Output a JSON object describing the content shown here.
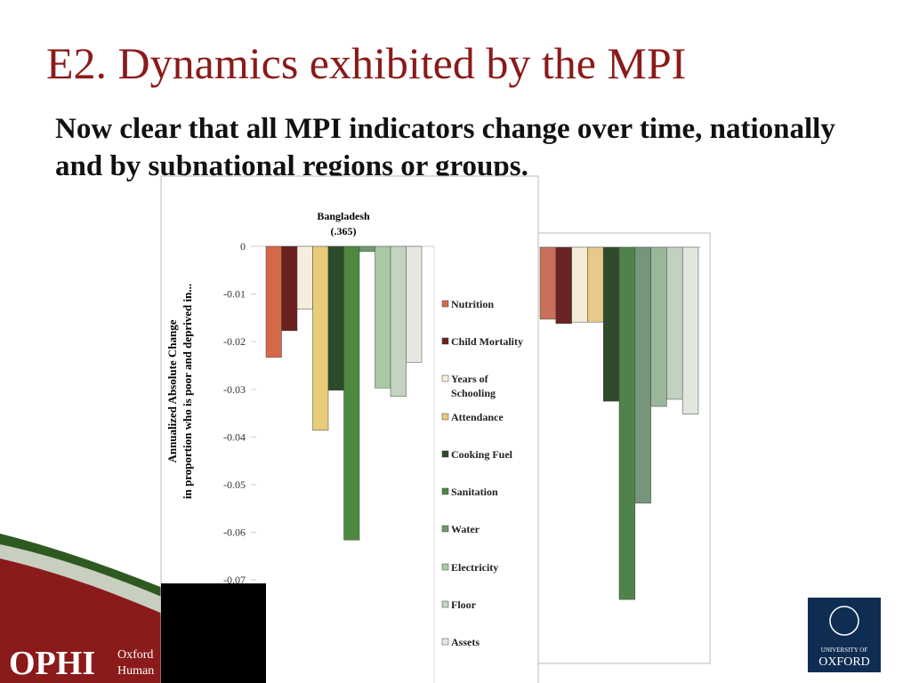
{
  "slide_title": "E2. Dynamics exhibited by the MPI",
  "body": "Now clear that all MPI indicators change over time, nationally and by subnational regions or groups.",
  "footer": {
    "brand": "OPHI",
    "line1": "Oxford",
    "line2": "Human",
    "logo_line1": "UNIVERSITY OF",
    "logo_line2": "OXFORD"
  },
  "chart_data": [
    {
      "type": "bar",
      "values": [
        -0.0151,
        -0.016,
        -0.0157,
        -0.0157,
        -0.0323,
        -0.0739,
        -0.0537,
        -0.0334,
        -0.0319,
        -0.035
      ],
      "colors": [
        "#c8705a",
        "#6b2424",
        "#f5ecd8",
        "#e9c98a",
        "#2f4a2c",
        "#4f834a",
        "#76957a",
        "#9ab79a",
        "#c3d1c1",
        "#e1e7df"
      ],
      "ylim": [
        -0.08,
        0
      ]
    },
    {
      "type": "bar",
      "title": "Bangladesh",
      "subtitle": "(.365)",
      "y_label": [
        "Annualized Absolute Change",
        "in proportion who is poor and deprived in..."
      ],
      "categories": [
        "Nutrition",
        "Child Mortality",
        "Years of Schooling",
        "Attendance",
        "Cooking Fuel",
        "Sanitation",
        "Water",
        "Electricity",
        "Floor",
        "Assets"
      ],
      "values": [
        -0.0233,
        -0.0177,
        -0.0132,
        -0.0386,
        -0.0302,
        -0.0616,
        -0.0011,
        -0.0297,
        -0.0315,
        -0.0243
      ],
      "colors": [
        "#d4694a",
        "#6b1f1f",
        "#f6eedd",
        "#e8cc7a",
        "#2d4a2a",
        "#4d8a3f",
        "#6f9a6e",
        "#a8c9a4",
        "#c6d3c3",
        "#e3e8e1"
      ],
      "ylim": [
        -0.08,
        0
      ],
      "yticks": [
        0,
        -0.01,
        -0.02,
        -0.03,
        -0.04,
        -0.05,
        -0.06,
        -0.07
      ]
    }
  ]
}
